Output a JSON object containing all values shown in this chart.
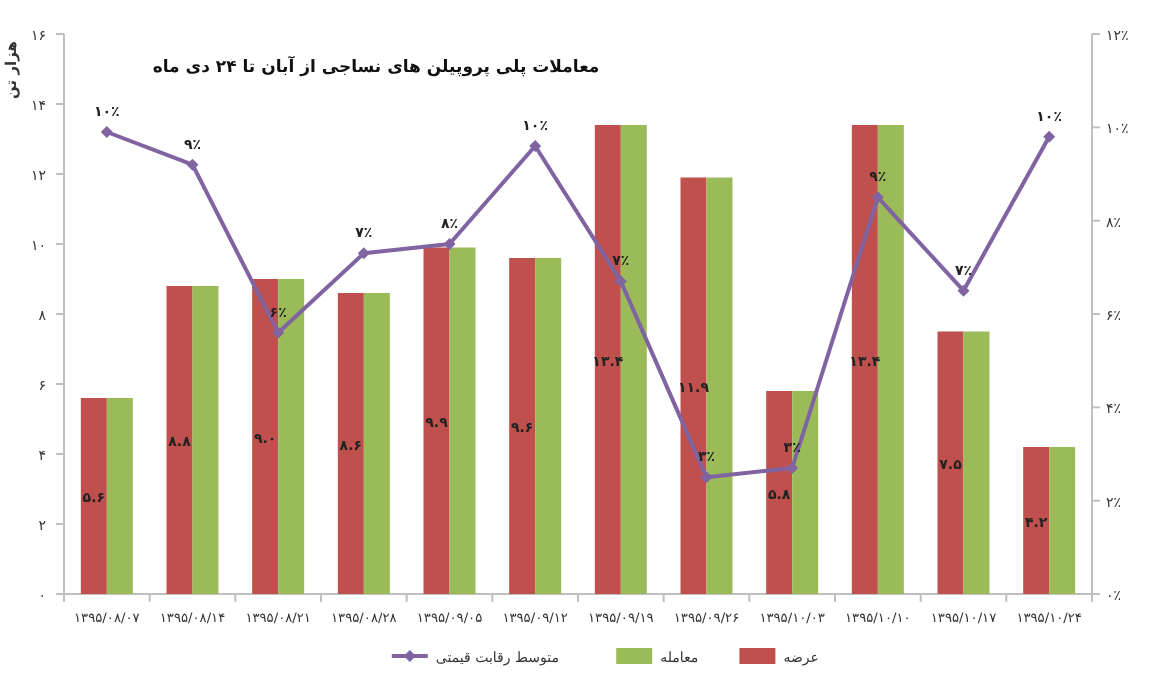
{
  "chart_data": {
    "type": "bar",
    "title": "معاملات پلی پروپیلن های نساجی از آبان تا ۲۴ دی ماه",
    "ylabel": "هزار تن",
    "categories": [
      "۱۳۹۵/۰۸/۰۷",
      "۱۳۹۵/۰۸/۱۴",
      "۱۳۹۵/۰۸/۲۱",
      "۱۳۹۵/۰۸/۲۸",
      "۱۳۹۵/۰۹/۰۵",
      "۱۳۹۵/۰۹/۱۲",
      "۱۳۹۵/۰۹/۱۹",
      "۱۳۹۵/۰۹/۲۶",
      "۱۳۹۵/۱۰/۰۳",
      "۱۳۹۵/۱۰/۱۰",
      "۱۳۹۵/۱۰/۱۷",
      "۱۳۹۵/۱۰/۲۴"
    ],
    "series": [
      {
        "name": "عرضه",
        "color": "#c0504d",
        "values": [
          5.6,
          8.8,
          9.0,
          8.6,
          9.9,
          9.6,
          13.4,
          11.9,
          5.8,
          13.4,
          7.5,
          4.2
        ],
        "value_labels": [
          "۵.۶",
          "۸.۸",
          "۹.۰",
          "۸.۶",
          "۹.۹",
          "۹.۶",
          "۱۳.۴",
          "۱۱.۹",
          "۵.۸",
          "۱۳.۴",
          "۷.۵",
          "۴.۲"
        ]
      },
      {
        "name": "معامله",
        "color": "#9bbb59",
        "values": [
          5.6,
          8.8,
          9.0,
          8.6,
          9.9,
          9.6,
          13.4,
          11.9,
          5.8,
          13.4,
          7.5,
          4.2
        ]
      },
      {
        "name": "متوسط رقابت قیمتی",
        "type": "line",
        "axis": "y2",
        "marker": "diamond",
        "color": "#8064a2",
        "values": [
          9.9,
          9.2,
          5.6,
          7.3,
          7.5,
          9.6,
          6.7,
          2.5,
          2.7,
          8.5,
          6.5,
          9.8
        ],
        "value_labels": [
          "۱۰٪",
          "۹٪",
          "۶٪",
          "۷٪",
          "۸٪",
          "۱۰٪",
          "۷٪",
          "۳٪",
          "۳٪",
          "۹٪",
          "۷٪",
          "۱۰٪"
        ]
      }
    ],
    "ylim": [
      0,
      16
    ],
    "yticks": [
      {
        "value": 0,
        "label": "۰"
      },
      {
        "value": 2,
        "label": "۲"
      },
      {
        "value": 4,
        "label": "۴"
      },
      {
        "value": 6,
        "label": "۶"
      },
      {
        "value": 8,
        "label": "۸"
      },
      {
        "value": 10,
        "label": "۱۰"
      },
      {
        "value": 12,
        "label": "۱۲"
      },
      {
        "value": 14,
        "label": "۱۴"
      },
      {
        "value": 16,
        "label": "۱۶"
      }
    ],
    "y2lim": [
      0,
      12
    ],
    "y2ticks": [
      {
        "value": 0,
        "label": "۰٪"
      },
      {
        "value": 2,
        "label": "۲٪"
      },
      {
        "value": 4,
        "label": "۴٪"
      },
      {
        "value": 6,
        "label": "۶٪"
      },
      {
        "value": 8,
        "label": "۸٪"
      },
      {
        "value": 10,
        "label": "۱۰٪"
      },
      {
        "value": 12,
        "label": "۱۲٪"
      }
    ],
    "legend": "bottom"
  }
}
